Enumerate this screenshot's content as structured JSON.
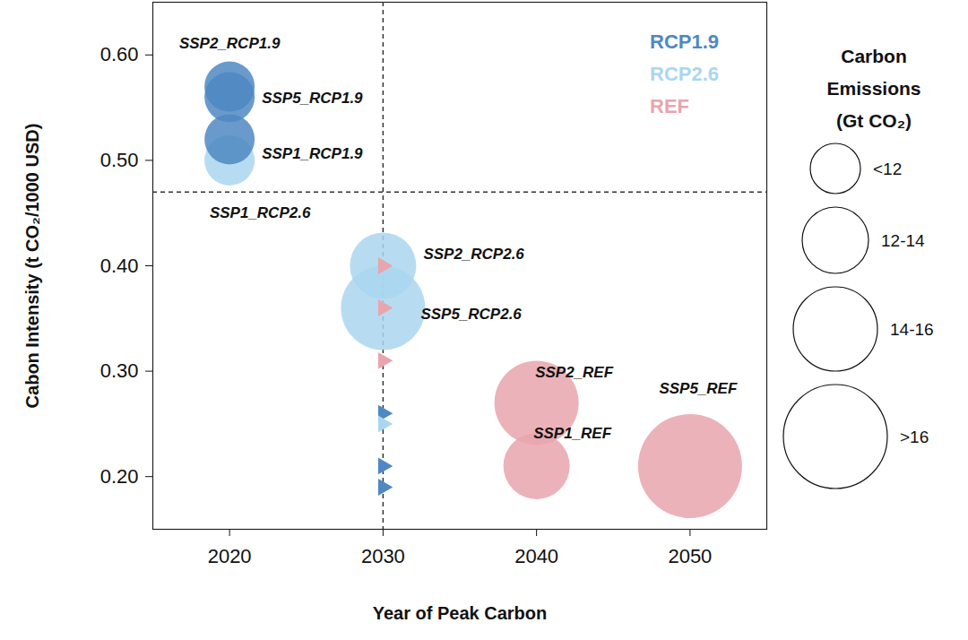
{
  "chart_data": {
    "type": "bubble",
    "x_label": "Year of Peak Carbon",
    "y_label": "Cabon Intensity (t CO₂/1000 USD)",
    "xlim": [
      2015,
      2055
    ],
    "xticks": [
      2020,
      2030,
      2040,
      2050
    ],
    "ylim": [
      0.15,
      0.65
    ],
    "yticks": [
      {
        "value": 0.2,
        "label": "0.20"
      },
      {
        "value": 0.3,
        "label": "0.30"
      },
      {
        "value": 0.4,
        "label": "0.40"
      },
      {
        "value": 0.5,
        "label": "0.50"
      },
      {
        "value": 0.6,
        "label": "0.60"
      }
    ],
    "grid": false,
    "legend": "top-right",
    "series": [
      {
        "name": "RCP1.9",
        "color": "#4f88c2"
      },
      {
        "name": "RCP2.6",
        "color": "#aad6f0"
      },
      {
        "name": "REF",
        "color": "#e9a5ad"
      }
    ],
    "reference_lines": {
      "x": [
        2030
      ],
      "y": [
        0.47
      ]
    },
    "bubbles": {
      "marker": "circle",
      "points": [
        {
          "label": "SSP1_RCP2.6",
          "series": "RCP2.6",
          "x": 2020,
          "y": 0.5,
          "emissions": "<12"
        },
        {
          "label": "SSP1_RCP1.9",
          "series": "RCP1.9",
          "x": 2020,
          "y": 0.52,
          "emissions": "<12"
        },
        {
          "label": "SSP5_RCP1.9",
          "series": "RCP1.9",
          "x": 2020,
          "y": 0.56,
          "emissions": "<12"
        },
        {
          "label": "SSP2_RCP1.9",
          "series": "RCP1.9",
          "x": 2020,
          "y": 0.57,
          "emissions": "<12"
        },
        {
          "label": "SSP5_RCP2.6",
          "series": "RCP2.6",
          "x": 2030,
          "y": 0.36,
          "emissions": "14-16"
        },
        {
          "label": "SSP2_RCP2.6",
          "series": "RCP2.6",
          "x": 2030,
          "y": 0.4,
          "emissions": "12-14"
        },
        {
          "label": "SSP2_REF",
          "series": "REF",
          "x": 2040,
          "y": 0.27,
          "emissions": "14-16"
        },
        {
          "label": "SSP1_REF",
          "series": "REF",
          "x": 2040,
          "y": 0.21,
          "emissions": "12-14"
        },
        {
          "label": "SSP5_REF",
          "series": "REF",
          "x": 2050,
          "y": 0.21,
          "emissions": ">16"
        }
      ]
    },
    "markers": {
      "marker": "triangle-right",
      "points": [
        {
          "series": "REF",
          "x": 2030,
          "y": 0.4
        },
        {
          "series": "REF",
          "x": 2030,
          "y": 0.36
        },
        {
          "series": "REF",
          "x": 2030,
          "y": 0.31
        },
        {
          "series": "RCP1.9",
          "x": 2030,
          "y": 0.26
        },
        {
          "series": "RCP2.6",
          "x": 2030,
          "y": 0.25
        },
        {
          "series": "RCP1.9",
          "x": 2030,
          "y": 0.21
        },
        {
          "series": "RCP1.9",
          "x": 2030,
          "y": 0.19
        }
      ]
    },
    "size_legend": {
      "title": [
        "Carbon",
        "Emissions",
        "(Gt CO₂)"
      ],
      "classes": [
        "<12",
        "12-14",
        "14-16",
        ">16"
      ]
    }
  }
}
